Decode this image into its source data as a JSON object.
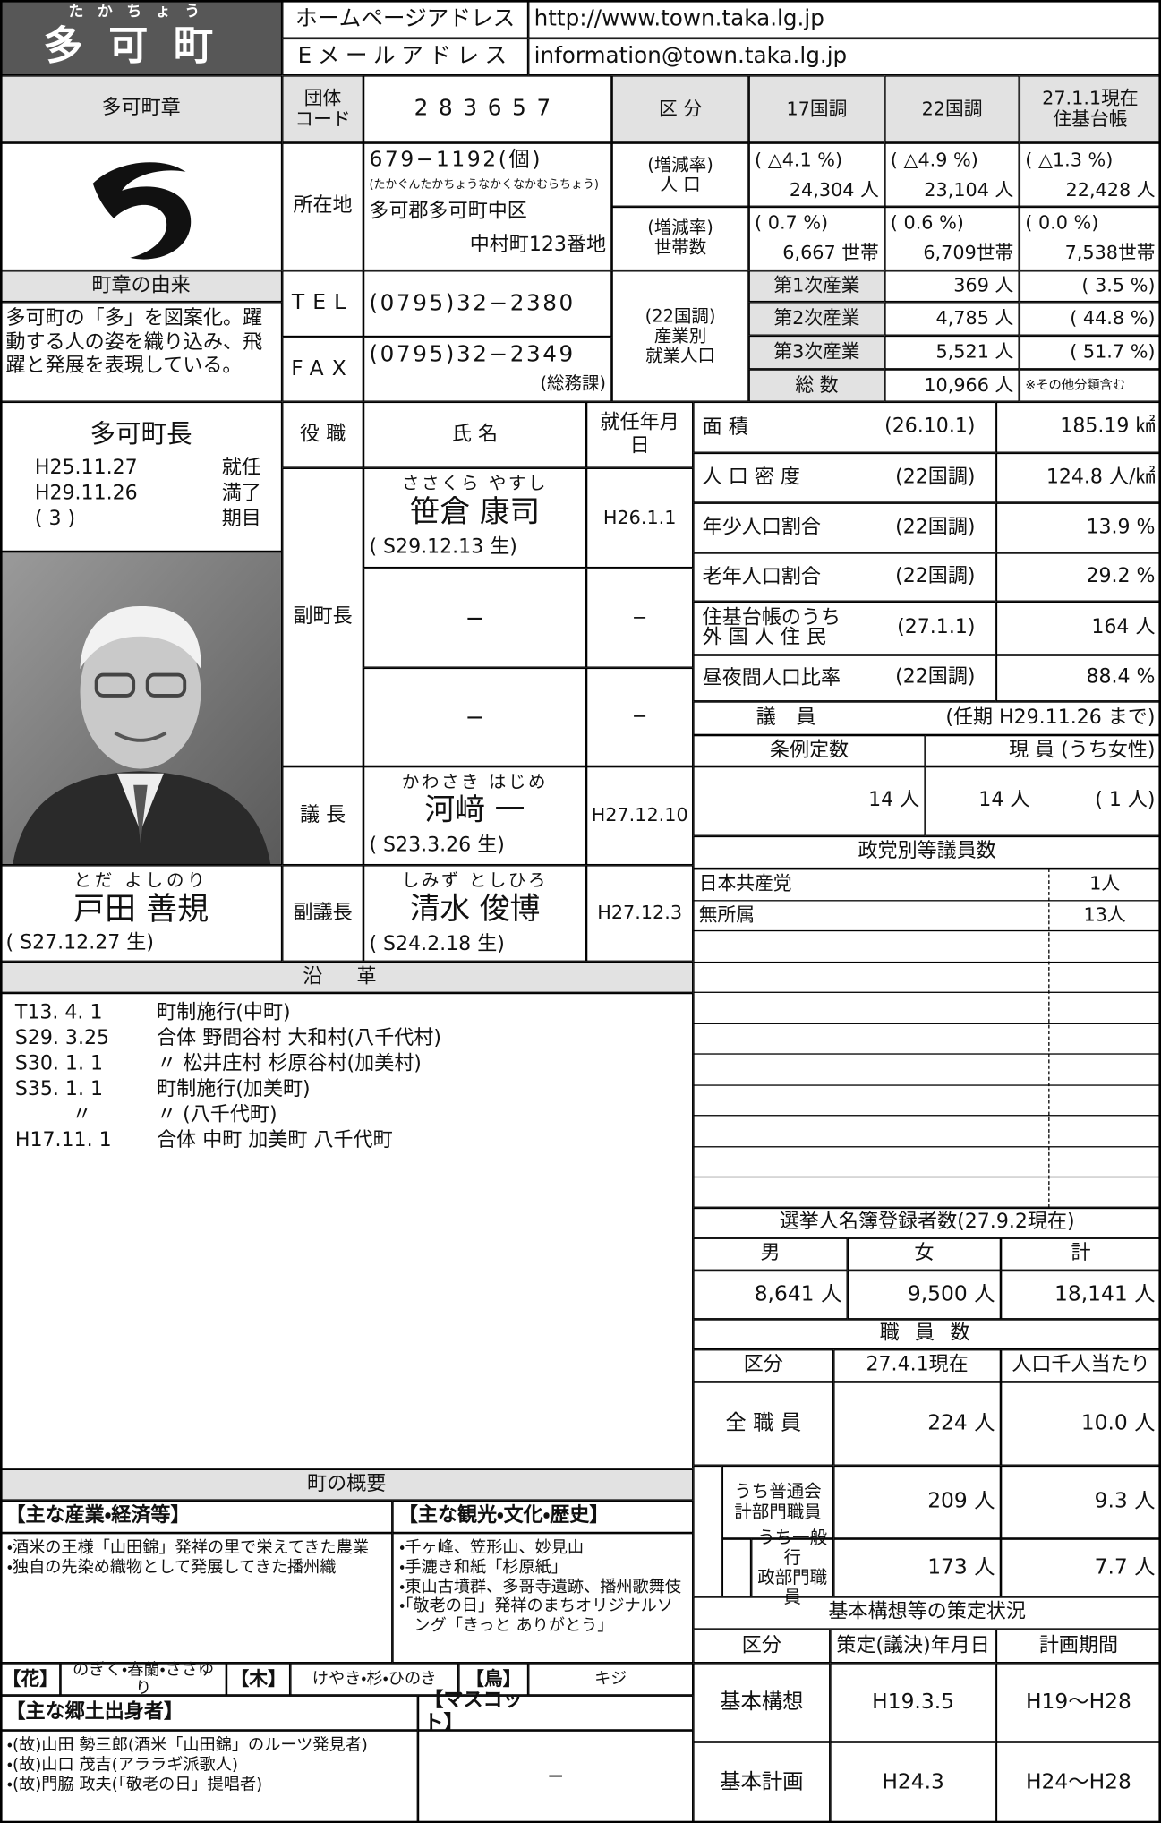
{
  "header": {
    "furigana": "たかちょう",
    "name": "多可町",
    "homepage_label": "ホームページアドレス",
    "homepage": "http://www.town.taka.lg.jp",
    "email_label": "Eメールアドレス",
    "email": "information@town.taka.lg.jp"
  },
  "basic": {
    "emblem_label": "多可町章",
    "code_label": "団体\nコード",
    "code": "283657",
    "address_label": "所在地",
    "postal": "679−1192(個)",
    "address_kana": "(たかぐんたかちょうなかくなかむらちょう)",
    "address_line1": "多可郡多可町中区",
    "address_line2": "中村町123番地",
    "emblem_origin_label": "町章の由来",
    "emblem_origin": "多可町の「多」を図案化。躍動する人の姿を織り込み、飛躍と発展を表現している。",
    "tel_label": "TEL",
    "tel": "(0795)32−2380",
    "fax_label": "FAX",
    "fax": "(0795)32−2349",
    "fax_note": "(総務課)"
  },
  "population": {
    "headers": [
      "区 分",
      "17国調",
      "22国調",
      "27.1.1現在\n住基台帳"
    ],
    "pop_label": "(増減率)\n人 口",
    "pop_rate": [
      "( △4.1 %)",
      "( △4.9 %)",
      "( △1.3 %)"
    ],
    "pop": [
      "24,304 人",
      "23,104 人",
      "22,428 人"
    ],
    "household_label": "(増減率)\n世帯数",
    "household_rate": [
      "( 0.7 %)",
      "( 0.6 %)",
      "( 0.0 %)"
    ],
    "households": [
      "6,667 世帯",
      "6,709世帯",
      "7,538世帯"
    ],
    "employment_label": "(22国調)\n産業別\n就業人口",
    "employment": [
      [
        "第1次産業",
        "369 人",
        "( 3.5 %)"
      ],
      [
        "第2次産業",
        "4,785 人",
        "( 44.8 %)"
      ],
      [
        "第3次産業",
        "5,521 人",
        "( 51.7 %)"
      ],
      [
        "総 数",
        "10,966 人",
        "※その他分類含む"
      ]
    ]
  },
  "mayor": {
    "title": "多可町長",
    "terms": [
      [
        "H25.11.27",
        "就任"
      ],
      [
        "H29.11.26",
        "満了"
      ],
      [
        "( 3 )",
        "期目"
      ]
    ],
    "kana": "とだ よしのり",
    "name": "戸田 善規",
    "birth": "( S27.12.27 生)"
  },
  "officials": {
    "headers": [
      "役 職",
      "氏 名",
      "就任年月日"
    ],
    "rows": [
      {
        "role": "副町長",
        "people": [
          {
            "kana": "ささくら やすし",
            "name": "笹倉 康司",
            "birth": "( S29.12.13 生)",
            "date": "H26.1.1"
          },
          {
            "name": "−",
            "date": "−"
          },
          {
            "name": "−",
            "date": "−"
          }
        ]
      },
      {
        "role": "議 長",
        "people": [
          {
            "kana": "かわさき はじめ",
            "name": "河﨑 一",
            "birth": "( S23.3.26 生)",
            "date": "H27.12.10"
          }
        ]
      },
      {
        "role": "副議長",
        "people": [
          {
            "kana": "しみず としひろ",
            "name": "清水 俊博",
            "birth": "( S24.2.18 生)",
            "date": "H27.12.3"
          }
        ]
      }
    ]
  },
  "stats": [
    {
      "label": "面 積",
      "note": "(26.10.1)",
      "value": "185.19 ㎢"
    },
    {
      "label": "人 口 密 度",
      "note": "(22国調)",
      "value": "124.8 人/㎢"
    },
    {
      "label": "年少人口割合",
      "note": "(22国調)",
      "value": "13.9 %"
    },
    {
      "label": "老年人口割合",
      "note": "(22国調)",
      "value": "29.2 %"
    },
    {
      "label": "住基台帳のうち\n外 国 人 住 民",
      "note": "(27.1.1)",
      "value": "164 人"
    },
    {
      "label": "昼夜間人口比率",
      "note": "(22国調)",
      "value": "88.4 %"
    }
  ],
  "assembly": {
    "label": "議 員",
    "term": "(任期 H29.11.26 まで)",
    "headers": [
      "条例定数",
      "現 員 (うち女性)"
    ],
    "quota": "14 人",
    "current": "14 人",
    "women": "( 1 人)",
    "parties_label": "政党別等議員数",
    "parties": [
      [
        "日本共産党",
        "1人"
      ],
      [
        "無所属",
        "13人"
      ]
    ]
  },
  "election": {
    "title": "選挙人名簿登録者数(27.9.2現在)",
    "headers": [
      "男",
      "女",
      "計"
    ],
    "values": [
      "8,641 人",
      "9,500 人",
      "18,141 人"
    ]
  },
  "staff": {
    "title": "職 員 数",
    "headers": [
      "区分",
      "27.4.1現在",
      "人口千人当たり"
    ],
    "rows": [
      [
        "全 職 員",
        "224 人",
        "10.0 人"
      ],
      [
        "うち普通会\n計部門職員",
        "209 人",
        "9.3 人"
      ],
      [
        "うち一般行\n政部門職員",
        "173 人",
        "7.7 人"
      ]
    ]
  },
  "plans": {
    "title": "基本構想等の策定状況",
    "headers": [
      "区分",
      "策定(議決)年月日",
      "計画期間"
    ],
    "rows": [
      [
        "基本構想",
        "H19.3.5",
        "H19〜H28"
      ],
      [
        "基本計画",
        "H24.3",
        "H24〜H28"
      ]
    ]
  },
  "history": {
    "title": "沿 革",
    "rows": [
      [
        "T13. 4. 1",
        "町制施行(中町)"
      ],
      [
        "S29. 3.25",
        "合体 野間谷村 大和村(八千代村)"
      ],
      [
        "S30. 1. 1",
        "〃 松井庄村 杉原谷村(加美村)"
      ],
      [
        "S35. 1. 1",
        "町制施行(加美町)"
      ],
      [
        "〃",
        "〃 (八千代町)"
      ],
      [
        "H17.11. 1",
        "合体 中町 加美町 八千代町"
      ]
    ]
  },
  "overview": {
    "title": "町の概要",
    "industry_label": "【主な産業・経済等】",
    "industry": [
      "・酒米の王様「山田錦」発祥の里で栄えてきた農業",
      "・独自の先染め織物として発展してきた播州織"
    ],
    "tourism_label": "【主な観光・文化・歴史】",
    "tourism": [
      "・千ヶ峰、笠形山、妙見山",
      "・手漉き和紙「杉原紙」",
      "・東山古墳群、多哥寺遺跡、播州歌舞伎",
      "・「敬老の日」発祥のまちオリジナルソング「きっと ありがとう」"
    ],
    "flower_label": "【花】",
    "flower": "のぎく・春蘭・ささゆり",
    "tree_label": "【木】",
    "tree": "けやき・杉・ひのき",
    "bird_label": "【鳥】",
    "bird": "キジ",
    "people_label": "【主な郷土出身者】",
    "people": [
      "・(故)山田 勢三郎(酒米「山田錦」のルーツ発見者)",
      "・(故)山口 茂吉(アララギ派歌人)",
      "・(故)門脇 政夫(「敬老の日」提唱者)"
    ],
    "mascot_label": "【マスコット】",
    "mascot": "−"
  }
}
